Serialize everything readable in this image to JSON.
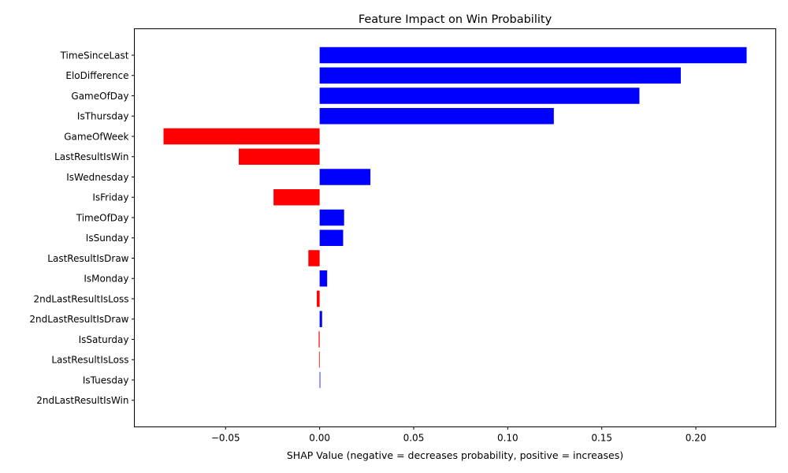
{
  "chart_data": {
    "type": "bar",
    "orientation": "horizontal",
    "title": "Feature Impact on Win Probability",
    "xlabel": "SHAP Value (negative = decreases probability, positive = increases)",
    "ylabel": "",
    "xlim": [
      -0.0985,
      0.2425
    ],
    "xticks": [
      {
        "value": -0.05,
        "label": "−0.05"
      },
      {
        "value": 0.0,
        "label": "0.00"
      },
      {
        "value": 0.05,
        "label": "0.05"
      },
      {
        "value": 0.1,
        "label": "0.10"
      },
      {
        "value": 0.15,
        "label": "0.15"
      },
      {
        "value": 0.2,
        "label": "0.20"
      }
    ],
    "grid": false,
    "colors": {
      "positive": "#0000ff",
      "negative": "#ff0000"
    },
    "categories": [
      "TimeSinceLast",
      "EloDifference",
      "GameOfDay",
      "IsThursday",
      "GameOfWeek",
      "LastResultIsWin",
      "IsWednesday",
      "IsFriday",
      "TimeOfDay",
      "IsSunday",
      "LastResultIsDraw",
      "IsMonday",
      "2ndLastResultIsLoss",
      "2ndLastResultIsDraw",
      "IsSaturday",
      "LastResultIsLoss",
      "IsTuesday",
      "2ndLastResultIsWin"
    ],
    "values": [
      0.227,
      0.192,
      0.17,
      0.1245,
      -0.083,
      -0.043,
      0.027,
      -0.0245,
      0.013,
      0.0125,
      -0.006,
      0.004,
      -0.0015,
      0.0013,
      -0.0005,
      -0.0003,
      0.0003,
      0.0
    ]
  }
}
